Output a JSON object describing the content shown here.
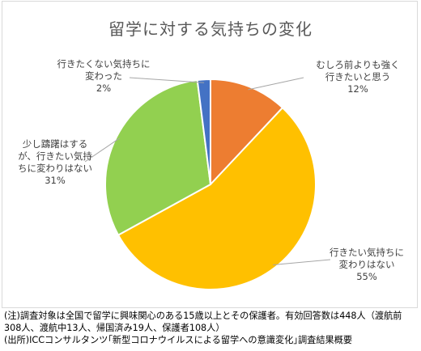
{
  "chart_data": {
    "type": "pie",
    "title": "留学に対する気持ちの変化",
    "slices": [
      {
        "label_lines": [
          "むしろ前よりも強く",
          "行きたいと思う"
        ],
        "value": 12,
        "value_label": "12%",
        "color": "#ed7d31"
      },
      {
        "label_lines": [
          "行きたい気持ちに",
          "変わりはない"
        ],
        "value": 55,
        "value_label": "55%",
        "color": "#ffc000"
      },
      {
        "label_lines": [
          "少し躊躇はする",
          "が、行きたい気持",
          "ちに変わりはない"
        ],
        "value": 31,
        "value_label": "31%",
        "color": "#92d050"
      },
      {
        "label_lines": [
          "行きたくない気持ちに",
          "変わった"
        ],
        "value": 2,
        "value_label": "2%",
        "color": "#4472c4"
      }
    ]
  },
  "notes": [
    "(注)調査対象は全国で留学に興味関心のある15歳以上とその保護者。有効回答数は448人（渡航前",
    "308人、渡航中13人、帰国済み19人、保護者108人）",
    "(出所)ICCコンサルタンツ｢新型コロナウイルスによる留学への意識変化｣調査結果概要"
  ]
}
